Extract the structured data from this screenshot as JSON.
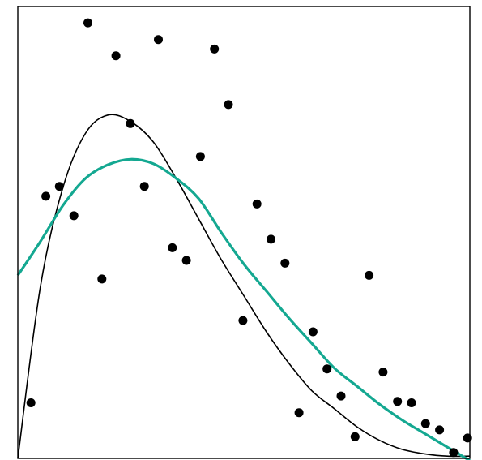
{
  "chart_data": {
    "type": "scatter",
    "title": "",
    "xlabel": "",
    "ylabel": "",
    "xlim": [
      0,
      1
    ],
    "ylim": [
      0,
      1
    ],
    "axes_visible": false,
    "grid": false,
    "legend": "none",
    "points": {
      "color": "#000000",
      "x": [
        0.029,
        0.062,
        0.092,
        0.124,
        0.155,
        0.186,
        0.217,
        0.249,
        0.28,
        0.311,
        0.342,
        0.373,
        0.404,
        0.435,
        0.466,
        0.498,
        0.529,
        0.56,
        0.591,
        0.622,
        0.653,
        0.684,
        0.715,
        0.746,
        0.777,
        0.808,
        0.84,
        0.871,
        0.902,
        0.933,
        0.964,
        0.995
      ],
      "y": [
        0.123,
        0.58,
        0.602,
        0.537,
        0.964,
        0.397,
        0.891,
        0.741,
        0.602,
        0.927,
        0.466,
        0.438,
        0.668,
        0.906,
        0.783,
        0.305,
        0.563,
        0.485,
        0.432,
        0.101,
        0.28,
        0.198,
        0.138,
        0.048,
        0.405,
        0.191,
        0.126,
        0.123,
        0.077,
        0.063,
        0.013,
        0.045
      ]
    },
    "series": [
      {
        "color": "#000000",
        "x": [
          0.0,
          0.05,
          0.1,
          0.15,
          0.2,
          0.25,
          0.3,
          0.35,
          0.4,
          0.45,
          0.5,
          0.55,
          0.6,
          0.65,
          0.7,
          0.75,
          0.8,
          0.85,
          0.9,
          0.95,
          1.0
        ],
        "y": [
          0.0,
          0.38,
          0.6,
          0.72,
          0.76,
          0.745,
          0.7,
          0.62,
          0.53,
          0.44,
          0.36,
          0.28,
          0.21,
          0.15,
          0.11,
          0.07,
          0.04,
          0.02,
          0.01,
          0.005,
          0.005
        ]
      },
      {
        "color": "#14a891",
        "x": [
          0.0,
          0.05,
          0.1,
          0.15,
          0.2,
          0.25,
          0.3,
          0.35,
          0.4,
          0.45,
          0.5,
          0.55,
          0.6,
          0.65,
          0.7,
          0.75,
          0.8,
          0.85,
          0.9,
          0.95,
          1.0
        ],
        "y": [
          0.405,
          0.48,
          0.56,
          0.62,
          0.65,
          0.662,
          0.652,
          0.62,
          0.575,
          0.5,
          0.43,
          0.37,
          0.31,
          0.255,
          0.2,
          0.16,
          0.12,
          0.085,
          0.055,
          0.025,
          -0.005
        ]
      }
    ]
  }
}
